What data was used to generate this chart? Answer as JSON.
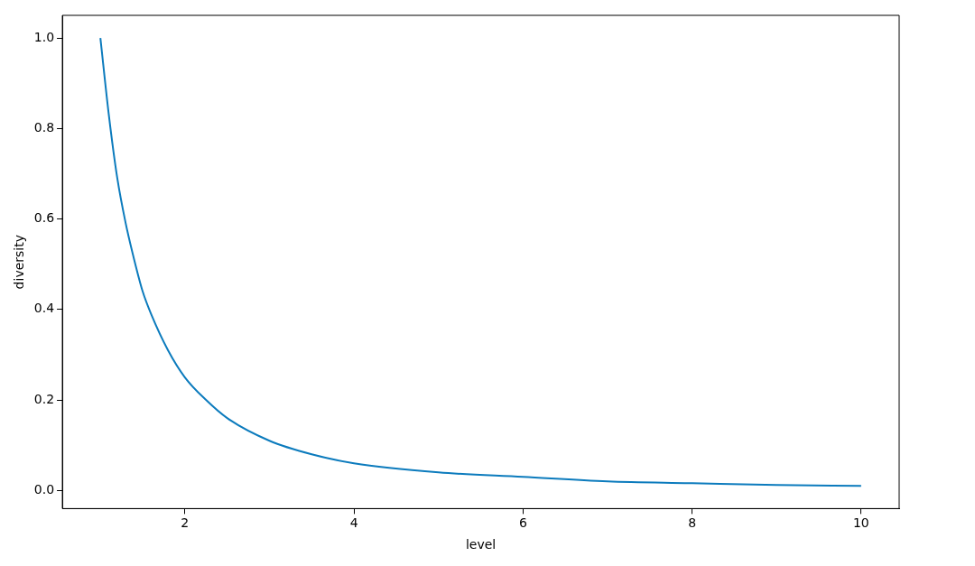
{
  "chart_data": {
    "type": "line",
    "xlabel": "level",
    "ylabel": "diversity",
    "x": [
      1,
      1.1,
      1.2,
      1.3,
      1.4,
      1.5,
      1.6,
      1.8,
      2,
      2.25,
      2.5,
      3,
      3.5,
      4,
      5,
      6,
      7,
      8,
      9,
      10
    ],
    "series": [
      {
        "color": "#0c7bbd",
        "values": [
          1,
          0.83,
          0.69,
          0.59,
          0.51,
          0.44,
          0.39,
          0.31,
          0.25,
          0.2,
          0.16,
          0.11,
          0.08,
          0.06,
          0.04,
          0.03,
          0.02,
          0.016,
          0.012,
          0.01
        ]
      }
    ],
    "xlim": [
      0.55,
      10.45
    ],
    "ylim": [
      -0.04,
      1.05
    ],
    "xticks": [
      2,
      4,
      6,
      8,
      10
    ],
    "yticks": [
      {
        "value": 0,
        "label": "0.0"
      },
      {
        "value": 0.2,
        "label": "0.2"
      },
      {
        "value": 0.4,
        "label": "0.4"
      },
      {
        "value": 0.6,
        "label": "0.6"
      },
      {
        "value": 0.8,
        "label": "0.8"
      },
      {
        "value": 1,
        "label": "1.0"
      }
    ],
    "grid": false,
    "legend": false,
    "marker": "none",
    "line_style": "solid"
  }
}
